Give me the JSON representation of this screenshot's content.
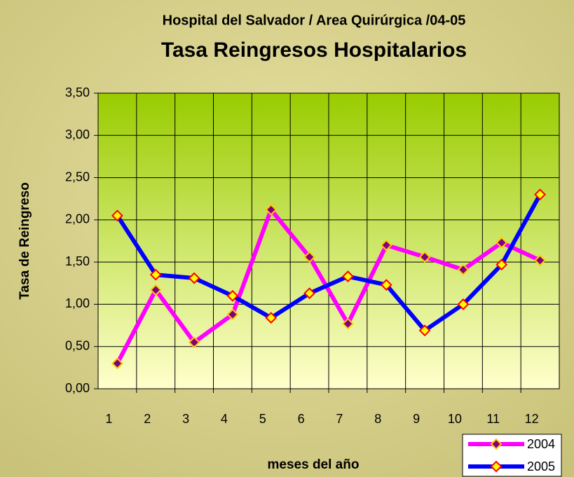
{
  "chart_data": {
    "type": "line",
    "subtitle": "Hospital del Salvador / Area Quirúrgica /04-05",
    "title": "Tasa Reingresos Hospitalarios",
    "y_label": "Tasa de Reingreso",
    "x_label": "meses del año",
    "categories": [
      "1",
      "2",
      "3",
      "4",
      "5",
      "6",
      "7",
      "8",
      "9",
      "10",
      "11",
      "12"
    ],
    "series": [
      {
        "name": "2004",
        "color": "#ff00ff",
        "marker_fill": "#800080",
        "marker_edge": "#ffcc00",
        "values": [
          0.3,
          1.17,
          0.55,
          0.88,
          2.12,
          1.56,
          0.77,
          1.7,
          1.56,
          1.41,
          1.73,
          1.52
        ]
      },
      {
        "name": "2005",
        "color": "#0000ff",
        "marker_fill": "#ffff00",
        "marker_edge": "#ff0000",
        "values": [
          2.05,
          1.35,
          1.31,
          1.1,
          0.84,
          1.13,
          1.33,
          1.23,
          0.69,
          1.0,
          1.47,
          2.3
        ]
      }
    ],
    "ylim": [
      0,
      3.5
    ],
    "yticks": [
      {
        "value": 0,
        "label": "0,00"
      },
      {
        "value": 0.5,
        "label": "0,50"
      },
      {
        "value": 1,
        "label": "1,00"
      },
      {
        "value": 1.5,
        "label": "1,50"
      },
      {
        "value": 2,
        "label": "2,00"
      },
      {
        "value": 2.5,
        "label": "2,50"
      },
      {
        "value": 3,
        "label": "3,00"
      },
      {
        "value": 3.5,
        "label": "3,50"
      }
    ],
    "grid": true,
    "legend": "bottom-right"
  }
}
